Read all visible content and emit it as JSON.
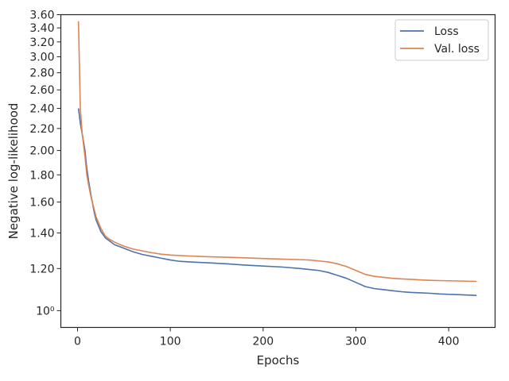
{
  "chart_data": {
    "type": "line",
    "title": "",
    "xlabel": "Epochs",
    "ylabel": "Negative log-likelihood",
    "xlim": [
      -18,
      450
    ],
    "ylim": [
      0.93,
      3.6
    ],
    "y_scale": "log",
    "x_ticks": [
      0,
      100,
      200,
      300,
      400
    ],
    "x_tick_labels": [
      "0",
      "100",
      "200",
      "300",
      "400"
    ],
    "y_ticks": [
      1.0,
      1.2,
      1.4,
      1.6,
      1.8,
      2.0,
      2.2,
      2.4,
      2.6,
      2.8,
      3.0,
      3.2,
      3.4,
      3.6
    ],
    "y_tick_labels": [
      "10⁰",
      "1.20",
      "1.40",
      "1.60",
      "1.80",
      "2.00",
      "2.20",
      "2.40",
      "2.60",
      "2.80",
      "3.00",
      "3.20",
      "3.40",
      "3.60"
    ],
    "grid": false,
    "legend_position": "top-right",
    "series": [
      {
        "name": "Loss",
        "color": "#4c72b0",
        "x": [
          1,
          3,
          5,
          8,
          10,
          12,
          15,
          18,
          20,
          25,
          30,
          35,
          40,
          45,
          50,
          60,
          70,
          80,
          90,
          100,
          110,
          120,
          140,
          160,
          180,
          200,
          220,
          240,
          250,
          260,
          270,
          280,
          290,
          300,
          310,
          320,
          330,
          340,
          350,
          360,
          370,
          380,
          390,
          400,
          410,
          420,
          430
        ],
        "values": [
          2.4,
          2.25,
          2.15,
          2.0,
          1.85,
          1.75,
          1.63,
          1.53,
          1.48,
          1.41,
          1.37,
          1.35,
          1.33,
          1.32,
          1.31,
          1.29,
          1.275,
          1.265,
          1.255,
          1.245,
          1.238,
          1.235,
          1.23,
          1.225,
          1.218,
          1.213,
          1.208,
          1.2,
          1.195,
          1.19,
          1.18,
          1.165,
          1.15,
          1.13,
          1.11,
          1.1,
          1.095,
          1.09,
          1.085,
          1.082,
          1.08,
          1.078,
          1.075,
          1.073,
          1.072,
          1.07,
          1.068
        ]
      },
      {
        "name": "Val. loss",
        "color": "#dd8452",
        "x": [
          1,
          2,
          3,
          5,
          8,
          10,
          12,
          15,
          18,
          20,
          25,
          30,
          35,
          40,
          45,
          50,
          60,
          70,
          80,
          90,
          100,
          120,
          140,
          160,
          180,
          200,
          220,
          240,
          250,
          260,
          270,
          280,
          290,
          300,
          310,
          320,
          330,
          340,
          350,
          360,
          370,
          380,
          390,
          400,
          410,
          420,
          430
        ],
        "values": [
          3.5,
          2.9,
          2.4,
          2.15,
          1.95,
          1.8,
          1.72,
          1.62,
          1.55,
          1.5,
          1.43,
          1.38,
          1.36,
          1.345,
          1.333,
          1.322,
          1.305,
          1.295,
          1.285,
          1.277,
          1.272,
          1.267,
          1.263,
          1.26,
          1.257,
          1.253,
          1.25,
          1.247,
          1.245,
          1.24,
          1.235,
          1.225,
          1.21,
          1.19,
          1.17,
          1.16,
          1.155,
          1.15,
          1.147,
          1.145,
          1.142,
          1.14,
          1.139,
          1.138,
          1.137,
          1.136,
          1.135
        ]
      }
    ]
  }
}
